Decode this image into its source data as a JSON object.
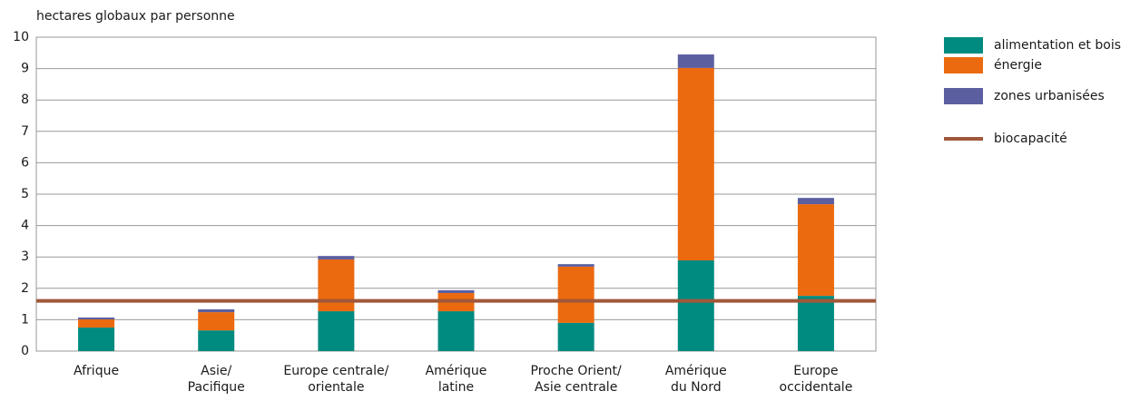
{
  "chart_data": {
    "type": "stacked_bar",
    "y_label": "hectares globaux par personne",
    "categories": [
      [
        "Afrique"
      ],
      [
        "Asie/",
        "Pacifique"
      ],
      [
        "Europe centrale/",
        "orientale"
      ],
      [
        "Amérique",
        "latine"
      ],
      [
        "Proche Orient/",
        "Asie centrale"
      ],
      [
        "Amérique",
        "du Nord"
      ],
      [
        "Europe",
        "occidentale"
      ]
    ],
    "series": [
      {
        "name": "alimentation et bois",
        "color": "#008b80",
        "values": [
          0.75,
          0.66,
          1.27,
          1.27,
          0.9,
          2.89,
          1.76
        ]
      },
      {
        "name": "énergie",
        "color": "#ec6a0f",
        "values": [
          0.26,
          0.58,
          1.65,
          0.58,
          1.79,
          6.13,
          2.92
        ]
      },
      {
        "name": "zones urbanisées",
        "color": "#5b5fa0",
        "values": [
          0.06,
          0.09,
          0.11,
          0.09,
          0.08,
          0.43,
          0.2
        ]
      }
    ],
    "reference_line": {
      "name": "biocapacité",
      "value": 1.6,
      "color": "#a0583a"
    },
    "ylim": [
      0,
      10
    ],
    "yticks": [
      0,
      1,
      2,
      3,
      4,
      5,
      6,
      7,
      8,
      9,
      10
    ],
    "grid": true
  }
}
